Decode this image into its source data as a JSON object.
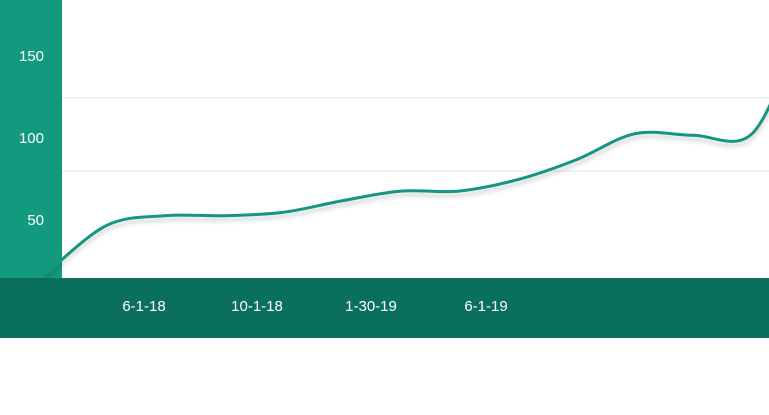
{
  "colors": {
    "y_axis_panel": "#139a7e",
    "x_axis_band": "#0b6f5e",
    "series_line": "#149580",
    "gridline": "#e6e6e6",
    "tick_text": "#ffffff",
    "background": "#ffffff"
  },
  "chart_data": {
    "type": "line",
    "title": "",
    "xlabel": "",
    "ylabel": "",
    "x_tick_labels": [
      "6-1-18",
      "10-1-18",
      "1-30-19",
      "6-1-19"
    ],
    "y_tick_labels": [
      "50",
      "100",
      "150"
    ],
    "grid": true,
    "legend": "none",
    "series": [
      {
        "x": [
          "2018-02-17",
          "2018-04-22",
          "2018-06-23",
          "2018-08-25",
          "2018-10-27",
          "2018-12-29",
          "2019-03-02",
          "2019-05-03",
          "2019-07-05",
          "2019-09-05",
          "2019-11-07",
          "2020-01-08",
          "2020-03-11",
          "2020-04-29"
        ],
        "values": [
          3,
          32,
          38,
          38,
          40,
          47,
          53,
          53,
          60,
          72,
          88,
          87,
          88,
          147
        ]
      }
    ]
  }
}
